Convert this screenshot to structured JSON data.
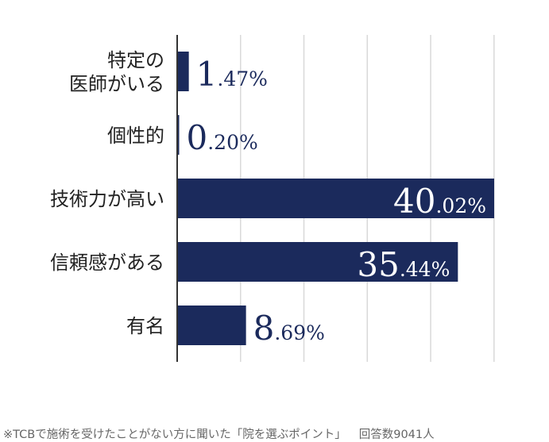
{
  "chart_data": {
    "type": "bar",
    "orientation": "horizontal",
    "categories": [
      "特定の\n医師がいる",
      "個性的",
      "技術力が高い",
      "信頼感がある",
      "有名"
    ],
    "values": [
      1.47,
      0.2,
      40.02,
      35.44,
      8.69
    ],
    "value_labels": [
      {
        "int": "1",
        "dec": ".47%"
      },
      {
        "int": "0",
        "dec": ".20%"
      },
      {
        "int": "40",
        "dec": ".02%"
      },
      {
        "int": "35",
        "dec": ".44%"
      },
      {
        "int": "8",
        "dec": ".69%"
      }
    ],
    "xlim": [
      0,
      43
    ],
    "grid": true,
    "bar_color": "#1b2a5c"
  },
  "footnote": {
    "survey_note": "※TCBで施術を受けたことがない方に聞いた「院を選ぶポイント」",
    "respondents": "回答数9041人"
  }
}
